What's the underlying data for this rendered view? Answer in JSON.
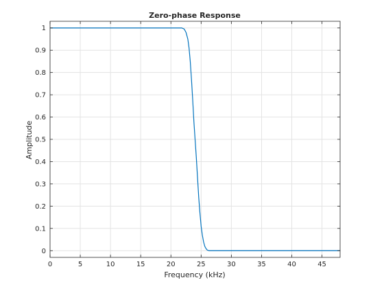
{
  "chart_data": {
    "type": "line",
    "title": "Zero-phase Response",
    "xlabel": "Frequency (kHz)",
    "ylabel": "Amplitude",
    "xlim": [
      0,
      48
    ],
    "ylim": [
      -0.03,
      1.03
    ],
    "xticks": [
      0,
      5,
      10,
      15,
      20,
      25,
      30,
      35,
      40,
      45
    ],
    "xtick_labels": [
      "0",
      "5",
      "10",
      "15",
      "20",
      "25",
      "30",
      "35",
      "40",
      "45"
    ],
    "yticks": [
      0,
      0.1,
      0.2,
      0.3,
      0.4,
      0.5,
      0.6,
      0.7,
      0.8,
      0.9,
      1
    ],
    "ytick_labels": [
      "0",
      "0.1",
      "0.2",
      "0.3",
      "0.4",
      "0.5",
      "0.6",
      "0.7",
      "0.8",
      "0.9",
      "1"
    ],
    "grid": true,
    "box": true,
    "series": [
      {
        "color": "#0072BD",
        "x": [
          0,
          5,
          10,
          15,
          20,
          21.8,
          22.2,
          22.5,
          22.8,
          23.0,
          23.2,
          23.4,
          23.6,
          23.8,
          24.0,
          24.2,
          24.4,
          24.6,
          24.8,
          25.0,
          25.2,
          25.4,
          25.6,
          25.8,
          26.0,
          26.3,
          30,
          35,
          40,
          45,
          48
        ],
        "y": [
          1,
          1,
          1,
          1,
          1,
          1,
          0.995,
          0.98,
          0.95,
          0.91,
          0.85,
          0.77,
          0.68,
          0.58,
          0.5,
          0.42,
          0.33,
          0.24,
          0.17,
          0.11,
          0.07,
          0.04,
          0.02,
          0.01,
          0.003,
          0,
          0,
          0,
          0,
          0,
          0
        ]
      }
    ]
  }
}
